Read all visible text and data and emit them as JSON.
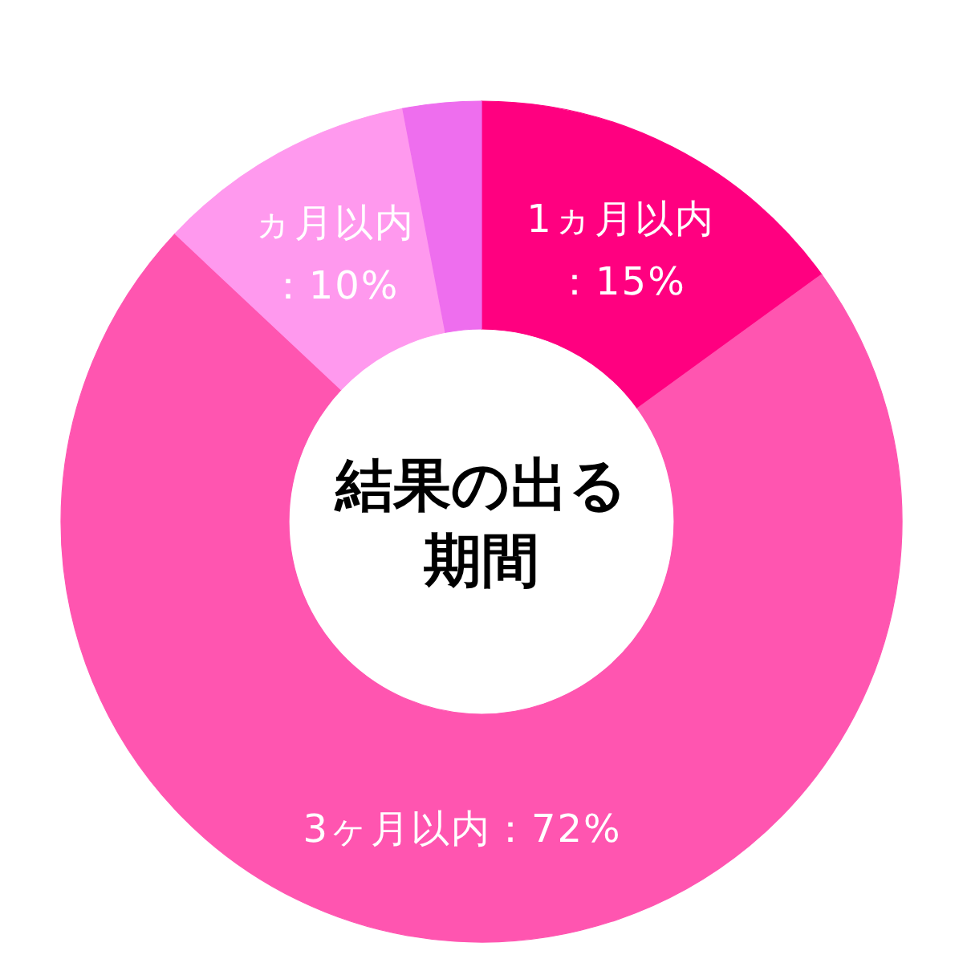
{
  "chart_data": {
    "type": "donut",
    "title": "結果の出る期間",
    "categories": [
      "1ヵ月以内",
      "3ヶ月以内",
      "ヵ月以内",
      null
    ],
    "values": [
      15,
      72,
      10,
      3
    ],
    "value_labels": [
      "：15%",
      "：72%",
      "：10%",
      null
    ],
    "colors": [
      "#ff0080",
      "#ff55b0",
      "#ff99ee",
      "#ee6eee"
    ]
  }
}
